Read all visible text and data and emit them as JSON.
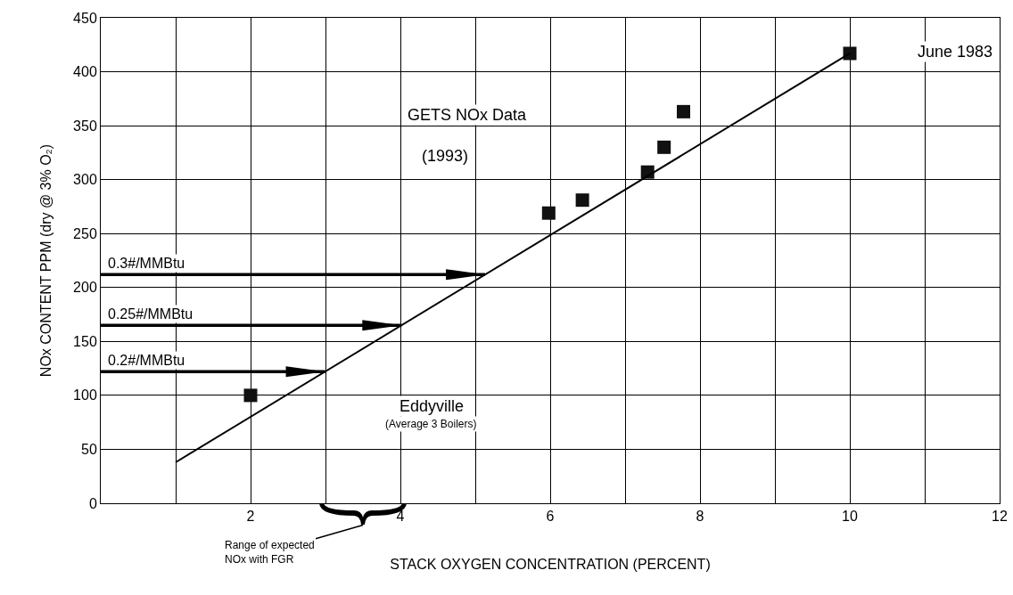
{
  "chart_data": {
    "type": "scatter",
    "xlabel": "STACK OXYGEN CONCENTRATION (PERCENT)",
    "ylabel": "NOx CONTENT PPM (dry @ 3% O₂)",
    "xlim": [
      0,
      12
    ],
    "ylim": [
      0,
      450
    ],
    "xticks": [
      {
        "value": 1,
        "label": null
      },
      2,
      {
        "value": 3,
        "label": null
      },
      4,
      {
        "value": 5,
        "label": null
      },
      6,
      {
        "value": 7,
        "label": null
      },
      8,
      {
        "value": 9,
        "label": null
      },
      10,
      {
        "value": 11,
        "label": null
      },
      12
    ],
    "yticks": [
      0,
      50,
      100,
      150,
      200,
      250,
      300,
      350,
      400,
      450
    ],
    "grid": true,
    "legend": false,
    "series": [
      {
        "color": "#111111",
        "marker": "square",
        "x": [
          2,
          5.98,
          6.43,
          7.3,
          7.52,
          7.78,
          10
        ],
        "values": [
          100,
          269,
          281,
          307,
          330,
          363,
          417
        ]
      },
      {
        "type": "line",
        "color": "#000000",
        "line_style": "solid",
        "x": [
          1,
          10
        ],
        "values": [
          38,
          417
        ]
      }
    ],
    "ref_lines": [
      {
        "axis": "y",
        "value": 212,
        "label": "0.3#/MMBtu",
        "color": "#000000"
      },
      {
        "axis": "y",
        "value": 165,
        "label": "0.25#/MMBtu",
        "color": "#000000"
      },
      {
        "axis": "y",
        "value": 122,
        "label": "0.2#/MMBtu",
        "color": "#000000"
      }
    ],
    "annotations": [
      "GETS NOx Data",
      "(1993)",
      "Eddyville",
      "(Average 3 Boilers)",
      "June 1983",
      "Range of expected NOx with FGR"
    ]
  }
}
